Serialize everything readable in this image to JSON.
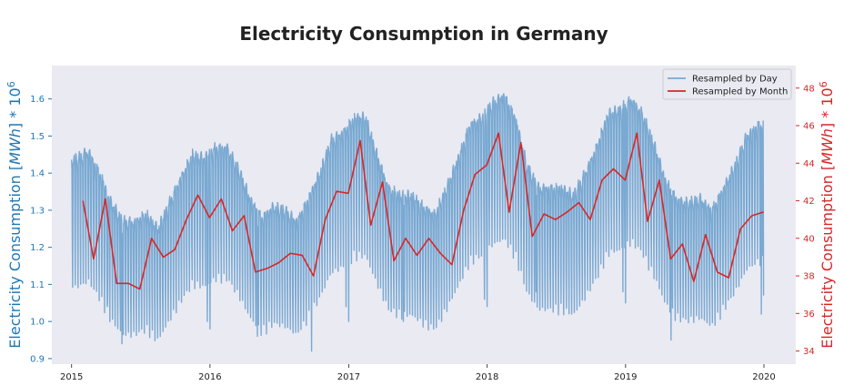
{
  "chart_data": {
    "type": "line",
    "title": "Electricity Consumption in Germany",
    "ylabel_left": "Electricity Consumption [MWh] * 10^6",
    "ylabel_right": "Electricity Consumption [MWh] * 10^6",
    "xlim": [
      "2014-11-10",
      "2020-03-25"
    ],
    "ylim_left": [
      0.885,
      1.69
    ],
    "ylim_right": [
      33.3,
      49.2
    ],
    "x_ticks": [
      "2015",
      "2016",
      "2017",
      "2018",
      "2019",
      "2020"
    ],
    "y_ticks_left": [
      "0.9",
      "1.0",
      "1.1",
      "1.2",
      "1.3",
      "1.4",
      "1.5",
      "1.6"
    ],
    "y_ticks_right": [
      "34",
      "36",
      "38",
      "40",
      "42",
      "44",
      "46",
      "48"
    ],
    "legend_position": "top-right",
    "grid": false,
    "colors": {
      "daily": "#7aa9d2",
      "monthly": "#d62728",
      "left_axis": "#1f77b4",
      "right_axis": "#d62728",
      "background": "#eaeaf2"
    },
    "series": [
      {
        "name": "Resampled by Day",
        "axis": "left",
        "note": "daily resample; weekly cycle between weekday high and weekend low; values approximate",
        "weekly_profile": [
          1.0,
          1.0,
          1.0,
          1.0,
          0.98,
          0.84,
          0.76
        ],
        "monthly_weekday_level": [
          [
            "2015-01",
            1.44
          ],
          [
            "2015-02",
            1.46
          ],
          [
            "2015-03",
            1.4
          ],
          [
            "2015-04",
            1.32
          ],
          [
            "2015-05",
            1.27
          ],
          [
            "2015-06",
            1.27
          ],
          [
            "2015-07",
            1.29
          ],
          [
            "2015-08",
            1.25
          ],
          [
            "2015-09",
            1.32
          ],
          [
            "2015-10",
            1.39
          ],
          [
            "2015-11",
            1.45
          ],
          [
            "2015-12",
            1.44
          ],
          [
            "2016-01",
            1.47
          ],
          [
            "2016-02",
            1.47
          ],
          [
            "2016-03",
            1.41
          ],
          [
            "2016-04",
            1.33
          ],
          [
            "2016-05",
            1.28
          ],
          [
            "2016-06",
            1.31
          ],
          [
            "2016-07",
            1.3
          ],
          [
            "2016-08",
            1.27
          ],
          [
            "2016-09",
            1.33
          ],
          [
            "2016-10",
            1.4
          ],
          [
            "2016-11",
            1.49
          ],
          [
            "2016-12",
            1.51
          ],
          [
            "2017-01",
            1.55
          ],
          [
            "2017-02",
            1.55
          ],
          [
            "2017-03",
            1.45
          ],
          [
            "2017-04",
            1.36
          ],
          [
            "2017-05",
            1.34
          ],
          [
            "2017-06",
            1.34
          ],
          [
            "2017-07",
            1.31
          ],
          [
            "2017-08",
            1.29
          ],
          [
            "2017-09",
            1.36
          ],
          [
            "2017-10",
            1.44
          ],
          [
            "2017-11",
            1.53
          ],
          [
            "2017-12",
            1.55
          ],
          [
            "2018-01",
            1.59
          ],
          [
            "2018-02",
            1.61
          ],
          [
            "2018-03",
            1.55
          ],
          [
            "2018-04",
            1.42
          ],
          [
            "2018-05",
            1.36
          ],
          [
            "2018-06",
            1.36
          ],
          [
            "2018-07",
            1.36
          ],
          [
            "2018-08",
            1.34
          ],
          [
            "2018-09",
            1.4
          ],
          [
            "2018-10",
            1.47
          ],
          [
            "2018-11",
            1.56
          ],
          [
            "2018-12",
            1.57
          ],
          [
            "2019-01",
            1.6
          ],
          [
            "2019-02",
            1.56
          ],
          [
            "2019-03",
            1.48
          ],
          [
            "2019-04",
            1.38
          ],
          [
            "2019-05",
            1.33
          ],
          [
            "2019-06",
            1.32
          ],
          [
            "2019-07",
            1.33
          ],
          [
            "2019-08",
            1.3
          ],
          [
            "2019-09",
            1.36
          ],
          [
            "2019-10",
            1.42
          ],
          [
            "2019-11",
            1.5
          ],
          [
            "2019-12",
            1.53
          ]
        ],
        "dips": [
          [
            "2015-04-06",
            1.05
          ],
          [
            "2015-05-14",
            0.94
          ],
          [
            "2015-12-25",
            1.0
          ],
          [
            "2016-01-01",
            0.98
          ],
          [
            "2016-05-05",
            0.96
          ],
          [
            "2016-09-25",
            0.92
          ],
          [
            "2016-12-25",
            1.04
          ],
          [
            "2017-01-01",
            1.0
          ],
          [
            "2017-05-25",
            1.0
          ],
          [
            "2017-12-25",
            1.06
          ],
          [
            "2018-01-01",
            1.04
          ],
          [
            "2018-05-10",
            1.08
          ],
          [
            "2018-12-25",
            1.08
          ],
          [
            "2019-01-01",
            1.05
          ],
          [
            "2019-05-01",
            0.95
          ],
          [
            "2019-12-25",
            1.02
          ],
          [
            "2019-12-31",
            1.07
          ]
        ]
      },
      {
        "name": "Resampled by Month",
        "axis": "right",
        "x": [
          "2015-01-31",
          "2015-02-28",
          "2015-03-31",
          "2015-04-30",
          "2015-05-31",
          "2015-06-30",
          "2015-07-31",
          "2015-08-31",
          "2015-09-30",
          "2015-10-31",
          "2015-11-30",
          "2015-12-31",
          "2016-01-31",
          "2016-02-29",
          "2016-03-31",
          "2016-04-30",
          "2016-05-31",
          "2016-06-30",
          "2016-07-31",
          "2016-08-31",
          "2016-09-30",
          "2016-10-31",
          "2016-11-30",
          "2016-12-31",
          "2017-01-31",
          "2017-02-28",
          "2017-03-31",
          "2017-04-30",
          "2017-05-31",
          "2017-06-30",
          "2017-07-31",
          "2017-08-31",
          "2017-09-30",
          "2017-10-31",
          "2017-11-30",
          "2017-12-31",
          "2018-01-31",
          "2018-02-28",
          "2018-03-31",
          "2018-04-30",
          "2018-05-31",
          "2018-06-30",
          "2018-07-31",
          "2018-08-31",
          "2018-09-30",
          "2018-10-31",
          "2018-11-30",
          "2018-12-31",
          "2019-01-31",
          "2019-02-28",
          "2019-03-31",
          "2019-04-30",
          "2019-05-31",
          "2019-06-30",
          "2019-07-31",
          "2019-08-31",
          "2019-09-30",
          "2019-10-31",
          "2019-11-30",
          "2019-12-31"
        ],
        "values": [
          42.0,
          38.9,
          42.1,
          37.6,
          37.6,
          37.3,
          40.0,
          39.0,
          39.4,
          41.0,
          42.3,
          41.1,
          42.1,
          40.4,
          41.2,
          38.2,
          38.4,
          38.7,
          39.2,
          39.1,
          38.0,
          41.0,
          42.5,
          42.4,
          45.2,
          40.7,
          43.0,
          38.8,
          40.0,
          39.1,
          40.0,
          39.2,
          38.6,
          41.5,
          43.4,
          43.9,
          45.6,
          41.4,
          45.1,
          40.1,
          41.3,
          41.0,
          41.4,
          41.9,
          41.0,
          43.1,
          43.7,
          43.1,
          45.6,
          40.9,
          43.1,
          38.9,
          39.7,
          37.7,
          40.2,
          38.2,
          37.9,
          40.5,
          41.2,
          41.4
        ]
      }
    ]
  }
}
